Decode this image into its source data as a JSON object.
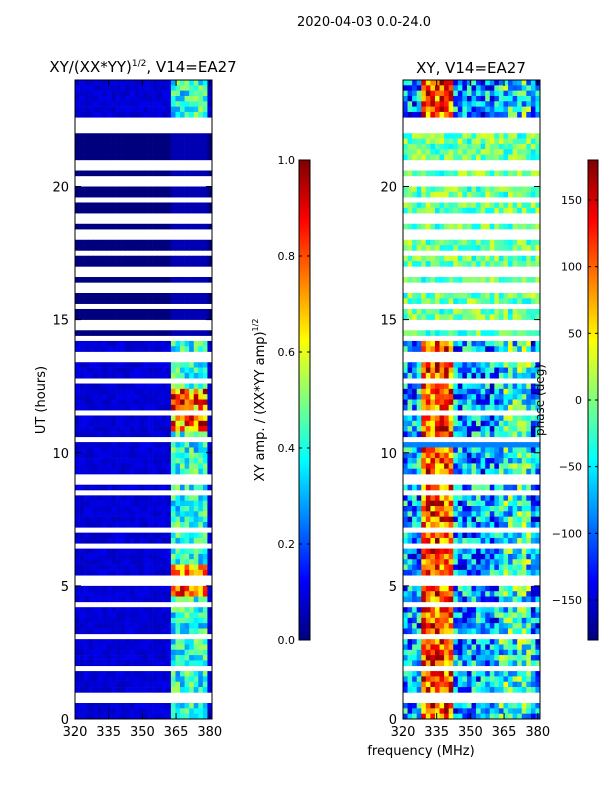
{
  "figure_title": "2020-04-03 0.0-24.0",
  "colors": {
    "jet": [
      "#00007f",
      "#0000ff",
      "#007fff",
      "#00ffff",
      "#7fff7f",
      "#ffff00",
      "#ff7f00",
      "#ff0000",
      "#7f0000"
    ]
  },
  "chart_data": [
    {
      "type": "heatmap",
      "title_main": "XY/(XX*YY)",
      "title_sup": "1/2",
      "title_rest": ", V14=EA27",
      "xlabel": "",
      "ylabel": "UT (hours)",
      "xlim": [
        320,
        381
      ],
      "ylim": [
        0,
        24
      ],
      "x_ticks": [
        "320",
        "335",
        "350",
        "365",
        "380"
      ],
      "x_tick_values": [
        320,
        335,
        350,
        365,
        380
      ],
      "y_ticks": [
        "0",
        "5",
        "10",
        "15",
        "20"
      ],
      "y_tick_values": [
        0,
        5,
        10,
        15,
        20
      ],
      "colorbar": {
        "label_main": "XY amp. / (XX*YY amp)",
        "label_sup": "1/2",
        "range": [
          0.0,
          1.0
        ],
        "ticks": [
          "0.0",
          "0.2",
          "0.4",
          "0.6",
          "0.8",
          "1.0"
        ],
        "tick_values": [
          0.0,
          0.2,
          0.4,
          0.6,
          0.8,
          1.0
        ]
      }
    },
    {
      "type": "heatmap",
      "title_main": "XY, V14=EA27",
      "xlabel": "frequency (MHz)",
      "ylabel": "",
      "xlim": [
        320,
        381
      ],
      "ylim": [
        0,
        24
      ],
      "x_ticks": [
        "320",
        "335",
        "350",
        "365",
        "380"
      ],
      "x_tick_values": [
        320,
        335,
        350,
        365,
        380
      ],
      "y_ticks": [
        "0",
        "5",
        "10",
        "15",
        "20"
      ],
      "y_tick_values": [
        0,
        5,
        10,
        15,
        20
      ],
      "colorbar": {
        "label_main": "phase (deg)",
        "range": [
          -180,
          180
        ],
        "ticks": [
          "−150",
          "−100",
          "−50",
          "0",
          "50",
          "100",
          "150"
        ],
        "tick_values": [
          -150,
          -100,
          -50,
          0,
          50,
          100,
          150
        ]
      }
    }
  ]
}
